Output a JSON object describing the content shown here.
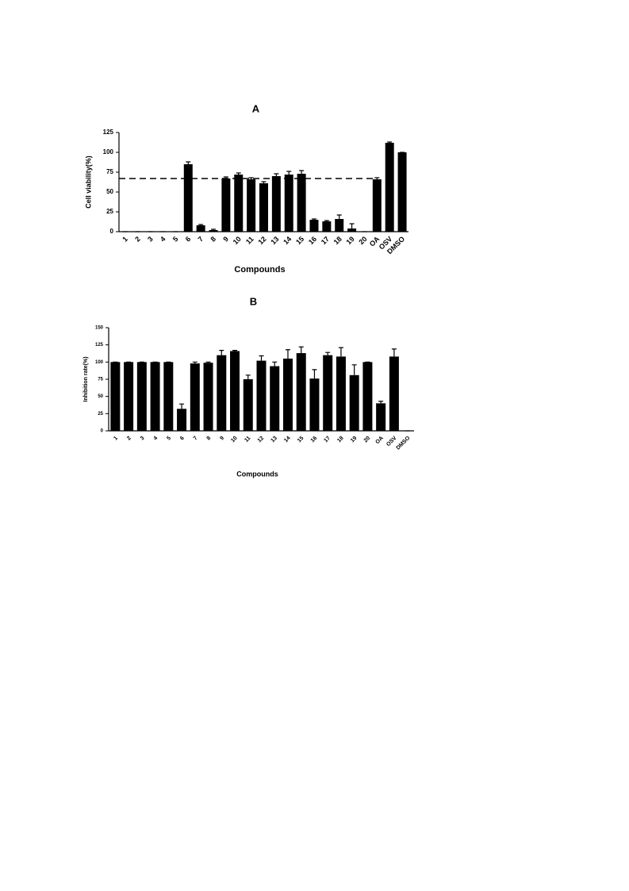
{
  "chart_data": [
    {
      "type": "bar",
      "title": "A",
      "xlabel": "Compounds",
      "ylabel": "Cell viability(%)",
      "categories": [
        "1",
        "2",
        "3",
        "4",
        "5",
        "6",
        "7",
        "8",
        "9",
        "10",
        "11",
        "12",
        "13",
        "14",
        "15",
        "16",
        "17",
        "18",
        "19",
        "20",
        "OA",
        "OSV",
        "DMSO"
      ],
      "values": [
        0,
        0,
        0,
        0,
        0,
        85,
        8,
        2,
        67,
        72,
        66,
        61,
        70,
        72,
        73,
        15,
        13,
        16,
        4,
        0,
        66,
        112,
        100
      ],
      "errors": [
        0,
        0,
        0,
        0,
        0,
        3,
        1,
        1,
        2,
        2,
        2,
        2,
        3,
        4,
        4,
        1,
        1,
        5,
        6,
        0,
        2,
        1,
        0
      ],
      "color": "#000000",
      "ylim": [
        0,
        125
      ],
      "yticks": [
        0,
        25,
        50,
        75,
        100,
        125
      ],
      "threshold": 67
    },
    {
      "type": "bar",
      "title": "B",
      "xlabel": "Compounds",
      "ylabel": "Inhibition rate(%)",
      "categories": [
        "1",
        "2",
        "3",
        "4",
        "5",
        "6",
        "7",
        "8",
        "9",
        "10",
        "11",
        "12",
        "13",
        "14",
        "15",
        "16",
        "17",
        "18",
        "19",
        "20",
        "OA",
        "OSV",
        "DMSO"
      ],
      "values": [
        100,
        100,
        100,
        100,
        100,
        32,
        98,
        99,
        110,
        116,
        75,
        102,
        94,
        105,
        113,
        76,
        110,
        108,
        81,
        100,
        40,
        108,
        0
      ],
      "errors": [
        0,
        0,
        0,
        0,
        0,
        7,
        2,
        1,
        7,
        1,
        6,
        7,
        6,
        13,
        9,
        13,
        4,
        13,
        15,
        0,
        3,
        11,
        0
      ],
      "color": "#000000",
      "ylim": [
        0,
        150
      ],
      "yticks": [
        0,
        25,
        50,
        75,
        100,
        125,
        150
      ]
    }
  ]
}
